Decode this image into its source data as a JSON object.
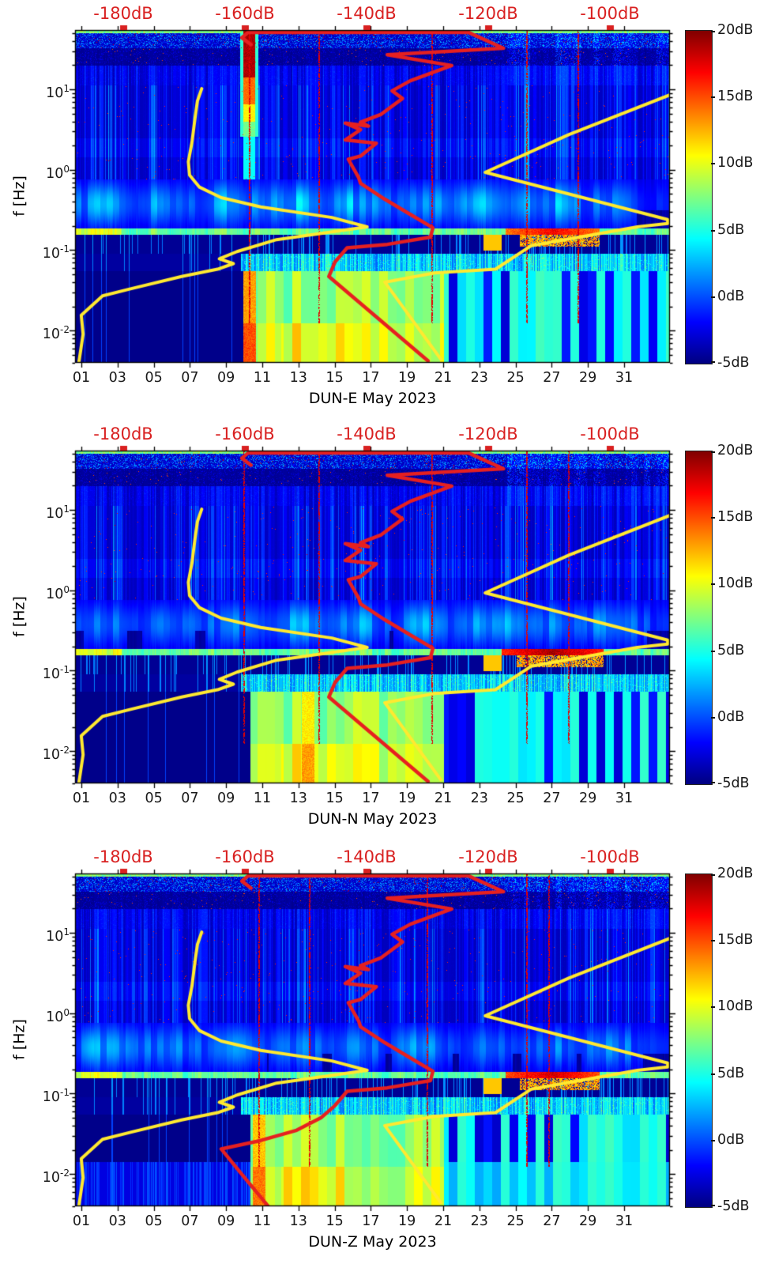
{
  "figure": {
    "kind": "seismic spectrogram probability density figure",
    "month": "May 2023",
    "station": "DUN"
  },
  "chart_data": {
    "type": "heatmap",
    "description": "Three stacked daily spectrograms (jet colormap) of seismic power deviation in dB for station DUN components E, N, Z during May 2023, with overlaid PSD-vs-frequency curves (yellow = min/max noise envelopes, red = median PSD) referenced to the red top dB axis.",
    "shared": {
      "x_axis": {
        "tick_labels": [
          "01",
          "03",
          "05",
          "07",
          "09",
          "11",
          "13",
          "15",
          "17",
          "19",
          "21",
          "23",
          "25",
          "27",
          "29",
          "31"
        ],
        "tick_days": [
          1,
          3,
          5,
          7,
          9,
          11,
          13,
          15,
          17,
          19,
          21,
          23,
          25,
          27,
          29,
          31
        ],
        "range_days": [
          0.65,
          33.5
        ]
      },
      "y_axis": {
        "label": "f [Hz]",
        "scale": "log",
        "range_hz": [
          0.004,
          55
        ],
        "tick_values_hz": [
          10,
          1,
          0.1,
          0.01
        ],
        "tick_display": [
          {
            "base": "10",
            "exp": "1"
          },
          {
            "base": "10",
            "exp": "0"
          },
          {
            "base": "10",
            "exp": "-1"
          },
          {
            "base": "10",
            "exp": "-2"
          }
        ]
      },
      "top_axis": {
        "unit": "dB",
        "tick_labels": [
          "-180dB",
          "-160dB",
          "-140dB",
          "-120dB",
          "-100dB"
        ],
        "tick_values": [
          -180,
          -160,
          -140,
          -120,
          -100
        ],
        "range_db": [
          -187.9,
          -90.1
        ],
        "color": "#d92121"
      },
      "colorbar": {
        "tick_labels": [
          "20dB",
          "15dB",
          "10dB",
          "5dB",
          "0dB",
          "-5dB"
        ],
        "tick_values": [
          20,
          15,
          10,
          5,
          0,
          -5
        ],
        "range_db": [
          -5,
          20
        ],
        "colormap": "jet"
      },
      "curve_colors": {
        "yellow": "#ffe930",
        "red": "#e62020"
      }
    },
    "panels": [
      {
        "station": "DUN-E",
        "title": "DUN-E May 2023",
        "heatmap_features": {
          "strong_band_day": 10.25,
          "blob_days": [
            24.4,
            29.6
          ],
          "blob_freq_hz": [
            0.155,
            0.2
          ],
          "blob_peak_db": 18,
          "green_column_days": [
            10.7,
            21.0
          ],
          "orange_col_day": 10.25,
          "orange_strength": 14,
          "red_line_days": [
            10.25,
            14.1,
            20.35,
            25.6,
            28.4
          ],
          "bottom_left_bright": false,
          "bottom_cyan": false
        },
        "curves": {
          "min_noise_yellow_db_hz": [
            [
              -187.3,
              0.004
            ],
            [
              -186.6,
              0.009
            ],
            [
              -186.9,
              0.0155
            ],
            [
              -183.4,
              0.027
            ],
            [
              -178.8,
              0.033
            ],
            [
              -170.4,
              0.047
            ],
            [
              -164.5,
              0.058
            ],
            [
              -161.9,
              0.068
            ],
            [
              -164.2,
              0.078
            ],
            [
              -161.3,
              0.096
            ],
            [
              -154.8,
              0.135
            ],
            [
              -139.9,
              0.195
            ],
            [
              -145.7,
              0.255
            ],
            [
              -157.4,
              0.345
            ],
            [
              -163.9,
              0.45
            ],
            [
              -167.5,
              0.61
            ],
            [
              -169.1,
              0.86
            ],
            [
              -169.3,
              1.26
            ],
            [
              -168.7,
              2.2
            ],
            [
              -168.2,
              4.4
            ],
            [
              -167.8,
              7.2
            ],
            [
              -167.1,
              10.2
            ]
          ],
          "max_noise_yellow_db_hz": [
            [
              -127.8,
              0.0044
            ],
            [
              -137.0,
              0.04
            ],
            [
              -128.8,
              0.052
            ],
            [
              -118.8,
              0.058
            ],
            [
              -112.9,
              0.114
            ],
            [
              -95.5,
              0.195
            ],
            [
              -90.5,
              0.215
            ],
            [
              -90.5,
              0.24
            ],
            [
              -120.5,
              0.93
            ],
            [
              -106.7,
              2.75
            ],
            [
              -90.1,
              8.55
            ]
          ],
          "median_psd_red_db_hz": [
            [
              -159.0,
              36
            ],
            [
              -160.5,
              44
            ],
            [
              -159.5,
              51
            ],
            [
              -123.2,
              51
            ],
            [
              -117.5,
              32.5
            ],
            [
              -136.6,
              27
            ],
            [
              -126.0,
              19.8
            ],
            [
              -132.8,
              12.8
            ],
            [
              -135.8,
              9.6
            ],
            [
              -134.1,
              7.7
            ],
            [
              -137.6,
              4.9
            ],
            [
              -141.0,
              3.9
            ],
            [
              -139.7,
              3.5
            ],
            [
              -143.5,
              3.8
            ],
            [
              -141.0,
              3.15
            ],
            [
              -143.5,
              2.35
            ],
            [
              -138.4,
              2.14
            ],
            [
              -141.0,
              1.48
            ],
            [
              -143.0,
              1.35
            ],
            [
              -141.3,
              0.8
            ],
            [
              -141.0,
              0.68
            ],
            [
              -137.0,
              0.43
            ],
            [
              -132.7,
              0.275
            ],
            [
              -129.1,
              0.19
            ],
            [
              -129.5,
              0.145
            ],
            [
              -136.6,
              0.118
            ],
            [
              -143.2,
              0.107
            ],
            [
              -145.2,
              0.071
            ],
            [
              -146.2,
              0.047
            ],
            [
              -129.9,
              0.0042
            ]
          ]
        }
      },
      {
        "station": "DUN-N",
        "title": "DUN-N May 2023",
        "heatmap_features": {
          "strong_band_day": null,
          "blob_days": [
            24.2,
            29.8
          ],
          "blob_freq_hz": [
            0.15,
            0.2
          ],
          "blob_peak_db": 20,
          "green_column_days": [
            10.7,
            21.0
          ],
          "orange_col_day": 13.5,
          "orange_strength": 12,
          "red_line_days": [
            9.95,
            14.1,
            20.35,
            25.6,
            27.9
          ],
          "bottom_left_bright": false,
          "bottom_cyan": false
        },
        "curves": {
          "min_noise_yellow_db_hz": [
            [
              -187.3,
              0.004
            ],
            [
              -186.6,
              0.009
            ],
            [
              -186.9,
              0.0155
            ],
            [
              -183.4,
              0.027
            ],
            [
              -178.8,
              0.033
            ],
            [
              -170.4,
              0.047
            ],
            [
              -164.5,
              0.058
            ],
            [
              -161.9,
              0.068
            ],
            [
              -164.2,
              0.078
            ],
            [
              -161.3,
              0.096
            ],
            [
              -154.8,
              0.135
            ],
            [
              -139.9,
              0.195
            ],
            [
              -145.7,
              0.255
            ],
            [
              -157.4,
              0.345
            ],
            [
              -163.9,
              0.45
            ],
            [
              -167.5,
              0.61
            ],
            [
              -169.1,
              0.86
            ],
            [
              -169.3,
              1.26
            ],
            [
              -168.7,
              2.2
            ],
            [
              -168.2,
              4.4
            ],
            [
              -167.8,
              7.2
            ],
            [
              -167.1,
              10.2
            ]
          ],
          "max_noise_yellow_db_hz": [
            [
              -127.8,
              0.0044
            ],
            [
              -137.0,
              0.04
            ],
            [
              -128.8,
              0.052
            ],
            [
              -118.8,
              0.058
            ],
            [
              -112.9,
              0.114
            ],
            [
              -95.5,
              0.195
            ],
            [
              -90.5,
              0.215
            ],
            [
              -90.5,
              0.24
            ],
            [
              -120.5,
              0.93
            ],
            [
              -106.7,
              2.75
            ],
            [
              -90.1,
              8.55
            ]
          ],
          "median_psd_red_db_hz": [
            [
              -159.0,
              36
            ],
            [
              -160.5,
              44
            ],
            [
              -159.5,
              51
            ],
            [
              -123.2,
              51
            ],
            [
              -117.5,
              32.5
            ],
            [
              -136.6,
              27
            ],
            [
              -126.0,
              19.8
            ],
            [
              -132.8,
              12.8
            ],
            [
              -135.8,
              9.6
            ],
            [
              -134.1,
              7.7
            ],
            [
              -137.6,
              4.9
            ],
            [
              -141.0,
              3.9
            ],
            [
              -139.7,
              3.5
            ],
            [
              -143.5,
              3.8
            ],
            [
              -141.0,
              3.15
            ],
            [
              -143.5,
              2.35
            ],
            [
              -138.4,
              2.14
            ],
            [
              -141.0,
              1.48
            ],
            [
              -143.0,
              1.35
            ],
            [
              -141.3,
              0.8
            ],
            [
              -141.0,
              0.68
            ],
            [
              -137.0,
              0.43
            ],
            [
              -132.7,
              0.275
            ],
            [
              -129.1,
              0.19
            ],
            [
              -129.5,
              0.145
            ],
            [
              -136.6,
              0.118
            ],
            [
              -143.2,
              0.107
            ],
            [
              -145.2,
              0.071
            ],
            [
              -146.2,
              0.047
            ],
            [
              -129.9,
              0.0042
            ]
          ]
        }
      },
      {
        "station": "DUN-Z",
        "title": "DUN-Z May 2023",
        "heatmap_features": {
          "strong_band_day": null,
          "blob_days": [
            24.4,
            29.6
          ],
          "blob_freq_hz": [
            0.155,
            0.2
          ],
          "blob_peak_db": 19,
          "green_column_days": [
            11.0,
            21.0
          ],
          "orange_col_day": 10.8,
          "orange_strength": 13,
          "red_line_days": [
            10.8,
            13.6,
            20.1,
            25.6,
            26.8
          ],
          "bottom_left_bright": true,
          "bottom_cyan": true
        },
        "curves": {
          "min_noise_yellow_db_hz": [
            [
              -187.3,
              0.004
            ],
            [
              -186.6,
              0.009
            ],
            [
              -186.9,
              0.0155
            ],
            [
              -183.4,
              0.027
            ],
            [
              -178.8,
              0.033
            ],
            [
              -170.4,
              0.047
            ],
            [
              -164.5,
              0.058
            ],
            [
              -161.9,
              0.068
            ],
            [
              -164.2,
              0.078
            ],
            [
              -161.3,
              0.096
            ],
            [
              -154.8,
              0.135
            ],
            [
              -139.9,
              0.195
            ],
            [
              -145.7,
              0.255
            ],
            [
              -157.4,
              0.345
            ],
            [
              -163.9,
              0.45
            ],
            [
              -167.5,
              0.61
            ],
            [
              -169.1,
              0.86
            ],
            [
              -169.3,
              1.26
            ],
            [
              -168.7,
              2.2
            ],
            [
              -168.2,
              4.4
            ],
            [
              -167.8,
              7.2
            ],
            [
              -167.1,
              10.2
            ]
          ],
          "max_noise_yellow_db_hz": [
            [
              -127.8,
              0.0044
            ],
            [
              -137.0,
              0.04
            ],
            [
              -128.8,
              0.052
            ],
            [
              -118.8,
              0.058
            ],
            [
              -112.9,
              0.114
            ],
            [
              -95.5,
              0.195
            ],
            [
              -90.5,
              0.215
            ],
            [
              -90.5,
              0.24
            ],
            [
              -120.5,
              0.93
            ],
            [
              -106.7,
              2.75
            ],
            [
              -90.1,
              8.55
            ]
          ],
          "median_psd_red_db_hz": [
            [
              -159.0,
              36
            ],
            [
              -160.5,
              44
            ],
            [
              -159.5,
              51
            ],
            [
              -123.2,
              51
            ],
            [
              -117.5,
              32.5
            ],
            [
              -136.6,
              27
            ],
            [
              -126.0,
              19.8
            ],
            [
              -132.8,
              12.8
            ],
            [
              -135.8,
              9.6
            ],
            [
              -134.1,
              7.7
            ],
            [
              -137.6,
              4.9
            ],
            [
              -141.0,
              3.9
            ],
            [
              -139.7,
              3.5
            ],
            [
              -143.5,
              3.8
            ],
            [
              -141.0,
              3.15
            ],
            [
              -143.5,
              2.35
            ],
            [
              -138.4,
              2.14
            ],
            [
              -141.0,
              1.48
            ],
            [
              -143.0,
              1.35
            ],
            [
              -141.3,
              0.8
            ],
            [
              -141.0,
              0.68
            ],
            [
              -137.0,
              0.43
            ],
            [
              -132.7,
              0.275
            ],
            [
              -129.1,
              0.19
            ],
            [
              -129.5,
              0.145
            ],
            [
              -136.6,
              0.118
            ],
            [
              -143.2,
              0.107
            ],
            [
              -145.2,
              0.071
            ],
            [
              -147.5,
              0.05
            ],
            [
              -151.5,
              0.035
            ],
            [
              -157.5,
              0.026
            ],
            [
              -163.9,
              0.0205
            ],
            [
              -161.0,
              0.011
            ],
            [
              -156.2,
              0.004
            ]
          ]
        }
      }
    ]
  }
}
